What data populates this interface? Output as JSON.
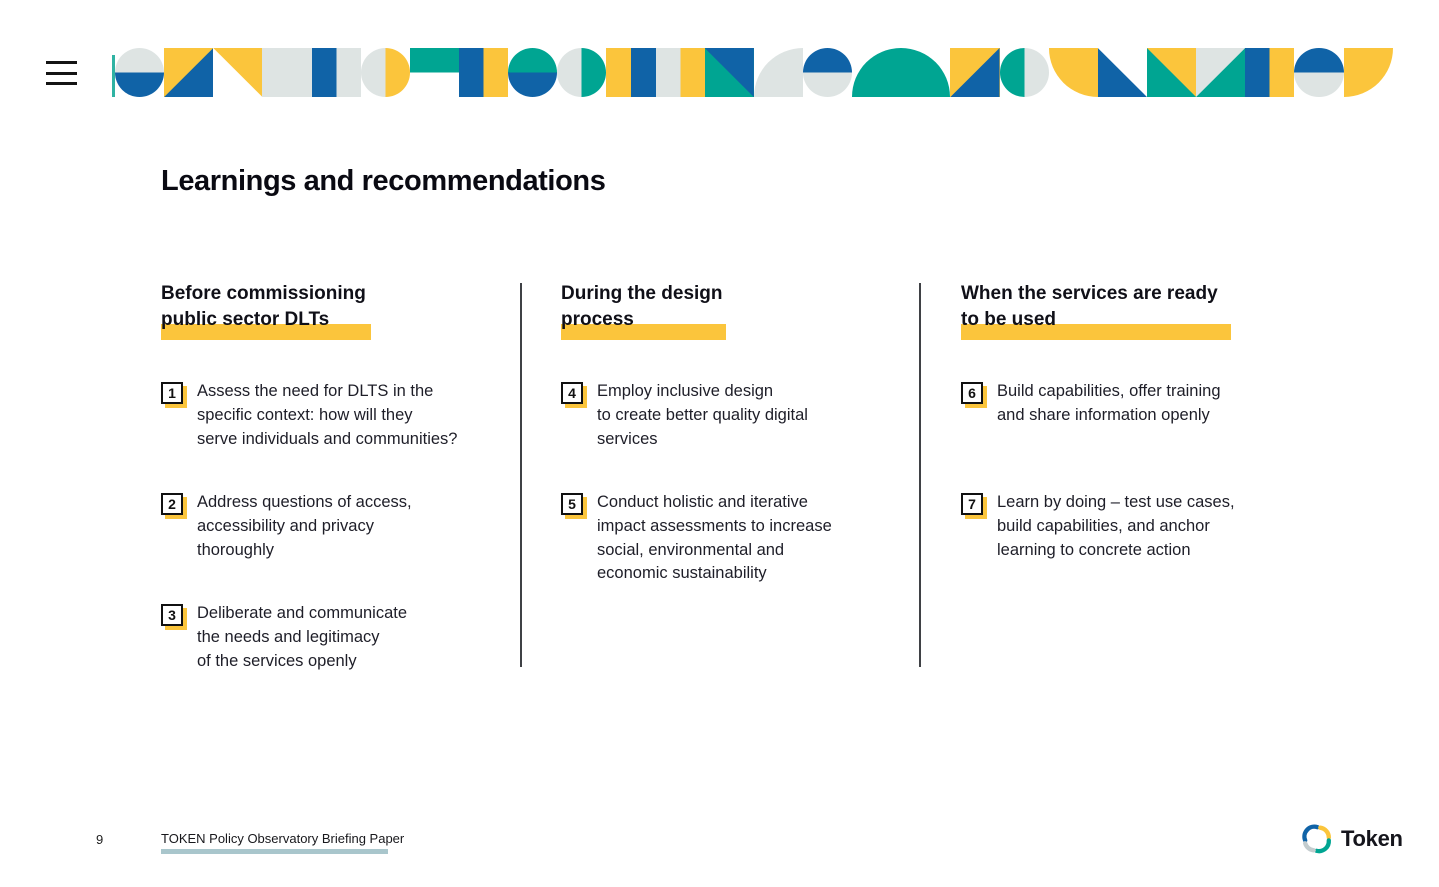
{
  "palette": {
    "b": "#1063A7",
    "y": "#FBC53C",
    "t": "#00A592",
    "g": "#DEE4E3",
    "w": "#FFFFFF",
    "accent_line": "#2FB3A3",
    "underline": "#A9C6CC",
    "highlight": "#FBC53C"
  },
  "menu": {
    "icon": "hamburger-icon"
  },
  "banner": {
    "tiles": [
      {
        "t": "ch",
        "c1": "g",
        "c2": "b"
      },
      {
        "t": "tri",
        "bg": "y",
        "fg": "b",
        "v": "br"
      },
      {
        "t": "tri",
        "bg": "w",
        "fg": "y",
        "v": "tr"
      },
      {
        "t": "solid",
        "c1": "g"
      },
      {
        "t": "vb",
        "c1": "b",
        "c2": "g"
      },
      {
        "t": "cv",
        "c1": "g",
        "c2": "y"
      },
      {
        "t": "hb",
        "c1": "t",
        "c2": "w"
      },
      {
        "t": "vb",
        "c1": "b",
        "c2": "y"
      },
      {
        "t": "ch",
        "c1": "t",
        "c2": "b"
      },
      {
        "t": "cv",
        "c1": "g",
        "c2": "t"
      },
      {
        "t": "vb",
        "c1": "y",
        "c2": "b"
      },
      {
        "t": "vb",
        "c1": "g",
        "c2": "y"
      },
      {
        "t": "tri",
        "bg": "t",
        "fg": "b",
        "v": "tr"
      },
      {
        "t": "q",
        "bg": "w",
        "fg": "g",
        "v": "tl"
      },
      {
        "t": "ch",
        "c1": "b",
        "c2": "g"
      },
      {
        "t": "q",
        "bg": "w",
        "fg": "t",
        "v": "tl"
      },
      {
        "t": "q",
        "bg": "w",
        "fg": "t",
        "v": "tr"
      },
      {
        "t": "tri",
        "bg": "y",
        "fg": "b",
        "v": "br"
      },
      {
        "t": "cv",
        "c1": "t",
        "c2": "g"
      },
      {
        "t": "q",
        "bg": "w",
        "fg": "y",
        "v": "bl"
      },
      {
        "t": "tri",
        "bg": "w",
        "fg": "b",
        "v": "bl"
      },
      {
        "t": "tri",
        "bg": "t",
        "fg": "y",
        "v": "tr"
      },
      {
        "t": "tri",
        "bg": "g",
        "fg": "t",
        "v": "br"
      },
      {
        "t": "vb",
        "c1": "b",
        "c2": "y"
      },
      {
        "t": "ch",
        "c1": "b",
        "c2": "g"
      },
      {
        "t": "rs",
        "c1": "y",
        "v": "br"
      }
    ]
  },
  "page": {
    "title": "Learnings and recommendations"
  },
  "columns": [
    {
      "heading_lines": [
        "Before commissioning",
        "public sector DLTs"
      ],
      "items": [
        {
          "num": "1",
          "lines": [
            "Assess the need for DLTS in the",
            "specific context: how will they",
            "serve individuals and communities?"
          ]
        },
        {
          "num": "2",
          "lines": [
            "Address questions of access,",
            "accessibility and privacy",
            "thoroughly"
          ]
        },
        {
          "num": "3",
          "lines": [
            "Deliberate and communicate",
            "the needs and legitimacy",
            "of the services openly"
          ]
        }
      ]
    },
    {
      "heading_lines": [
        "During the design",
        "process"
      ],
      "items": [
        {
          "num": "4",
          "lines": [
            "Employ inclusive design",
            "to create better quality digital",
            "services"
          ]
        },
        {
          "num": "5",
          "lines": [
            "Conduct holistic and iterative",
            "impact assessments to increase",
            "social, environmental and",
            "economic sustainability"
          ]
        }
      ]
    },
    {
      "heading_lines": [
        "When the services are ready",
        "to be used"
      ],
      "items": [
        {
          "num": "6",
          "lines": [
            "Build capabilities, offer training",
            "and share information openly"
          ]
        },
        {
          "num": "7",
          "lines": [
            "Learn by doing – test use cases,",
            "build capabilities, and anchor",
            "learning to concrete action"
          ]
        }
      ]
    }
  ],
  "footer": {
    "page_number": "9",
    "doc_title": "TOKEN Policy Observatory Briefing Paper",
    "logo_text": "Token"
  }
}
